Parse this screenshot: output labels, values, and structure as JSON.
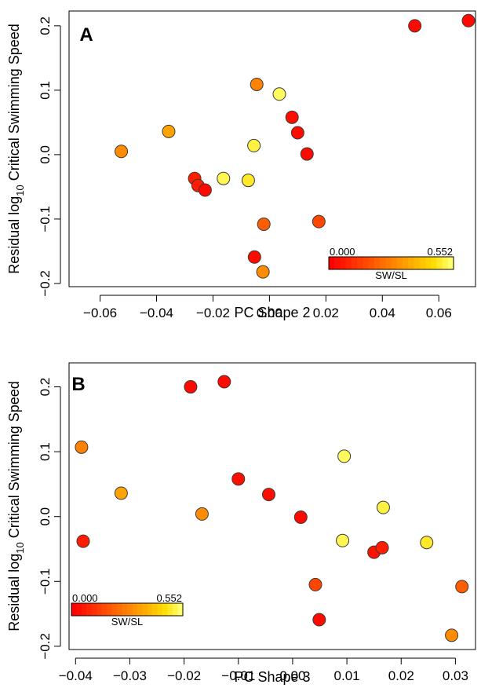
{
  "chart_data": [
    {
      "panel_label": "A",
      "type": "scatter",
      "xlabel": "PC Shape 2",
      "ylabel": {
        "prefix": "Residual log",
        "sub": "10",
        "suffix": " Critical Swimming Speed"
      },
      "xlim": [
        -0.071,
        0.073
      ],
      "ylim": [
        -0.205,
        0.223
      ],
      "xticks": [
        -0.06,
        -0.04,
        -0.02,
        0.0,
        0.02,
        0.04,
        0.06
      ],
      "xtick_labels": [
        "−0.06",
        "−0.04",
        "−0.02",
        "0.00",
        "0.02",
        "0.04",
        "0.06"
      ],
      "yticks": [
        -0.2,
        -0.1,
        0.0,
        0.1,
        0.2
      ],
      "ytick_labels": [
        "−0.2",
        "−0.1",
        "0.0",
        "0.1",
        "0.2"
      ],
      "colorbar": {
        "min_label": "0.000",
        "max_label": "0.552",
        "title": "SW/SL",
        "range": [
          0.0,
          0.552
        ]
      },
      "points": [
        {
          "x": -0.0525,
          "y": 0.005,
          "c": 0.3
        },
        {
          "x": -0.0357,
          "y": 0.036,
          "c": 0.35
        },
        {
          "x": -0.0265,
          "y": -0.037,
          "c": 0.06
        },
        {
          "x": -0.0253,
          "y": -0.048,
          "c": 0.06
        },
        {
          "x": -0.0228,
          "y": -0.055,
          "c": 0.02
        },
        {
          "x": -0.0163,
          "y": -0.037,
          "c": 0.53
        },
        {
          "x": -0.0075,
          "y": -0.04,
          "c": 0.5
        },
        {
          "x": -0.0055,
          "y": 0.014,
          "c": 0.52
        },
        {
          "x": -0.0045,
          "y": 0.109,
          "c": 0.28
        },
        {
          "x": -0.0053,
          "y": -0.159,
          "c": 0.02
        },
        {
          "x": -0.002,
          "y": -0.108,
          "c": 0.2
        },
        {
          "x": -0.0023,
          "y": -0.182,
          "c": 0.3
        },
        {
          "x": 0.0035,
          "y": 0.094,
          "c": 0.54
        },
        {
          "x": 0.008,
          "y": 0.058,
          "c": 0.03
        },
        {
          "x": 0.01,
          "y": 0.034,
          "c": 0.03
        },
        {
          "x": 0.0133,
          "y": 0.001,
          "c": 0.02
        },
        {
          "x": 0.0175,
          "y": -0.104,
          "c": 0.15
        },
        {
          "x": 0.0515,
          "y": 0.2,
          "c": 0.02
        },
        {
          "x": 0.0705,
          "y": 0.208,
          "c": 0.02
        }
      ]
    },
    {
      "panel_label": "B",
      "type": "scatter",
      "xlabel": "PC Shape 3",
      "ylabel": {
        "prefix": "Residual log",
        "sub": "10",
        "suffix": " Critical Swimming Speed"
      },
      "xlim": [
        -0.0412,
        0.0337
      ],
      "ylim": [
        -0.205,
        0.237
      ],
      "xticks": [
        -0.04,
        -0.03,
        -0.02,
        -0.01,
        0.0,
        0.01,
        0.02,
        0.03
      ],
      "xtick_labels": [
        "−0.04",
        "−0.03",
        "−0.02",
        "−0.01",
        "0.00",
        "0.01",
        "0.02",
        "0.03"
      ],
      "yticks": [
        -0.2,
        -0.1,
        0.0,
        0.1,
        0.2
      ],
      "ytick_labels": [
        "−0.2",
        "−0.1",
        "0.0",
        "0.1",
        "0.2"
      ],
      "colorbar": {
        "min_label": "0.000",
        "max_label": "0.552",
        "title": "SW/SL",
        "range": [
          0.0,
          0.552
        ]
      },
      "points": [
        {
          "x": -0.0389,
          "y": 0.107,
          "c": 0.28
        },
        {
          "x": -0.0386,
          "y": -0.038,
          "c": 0.06
        },
        {
          "x": -0.0316,
          "y": 0.036,
          "c": 0.35
        },
        {
          "x": -0.0188,
          "y": 0.2,
          "c": 0.02
        },
        {
          "x": -0.0167,
          "y": 0.004,
          "c": 0.3
        },
        {
          "x": -0.0126,
          "y": 0.208,
          "c": 0.02
        },
        {
          "x": -0.01,
          "y": 0.058,
          "c": 0.03
        },
        {
          "x": -0.0044,
          "y": 0.034,
          "c": 0.03
        },
        {
          "x": 0.0015,
          "y": -0.001,
          "c": 0.02
        },
        {
          "x": 0.0042,
          "y": -0.105,
          "c": 0.15
        },
        {
          "x": 0.0049,
          "y": -0.159,
          "c": 0.02
        },
        {
          "x": 0.0092,
          "y": -0.037,
          "c": 0.53
        },
        {
          "x": 0.0095,
          "y": 0.093,
          "c": 0.54
        },
        {
          "x": 0.015,
          "y": -0.055,
          "c": 0.04
        },
        {
          "x": 0.0165,
          "y": -0.048,
          "c": 0.06
        },
        {
          "x": 0.0167,
          "y": 0.014,
          "c": 0.52
        },
        {
          "x": 0.0247,
          "y": -0.04,
          "c": 0.5
        },
        {
          "x": 0.0293,
          "y": -0.183,
          "c": 0.3
        },
        {
          "x": 0.0312,
          "y": -0.108,
          "c": 0.2
        }
      ]
    }
  ]
}
